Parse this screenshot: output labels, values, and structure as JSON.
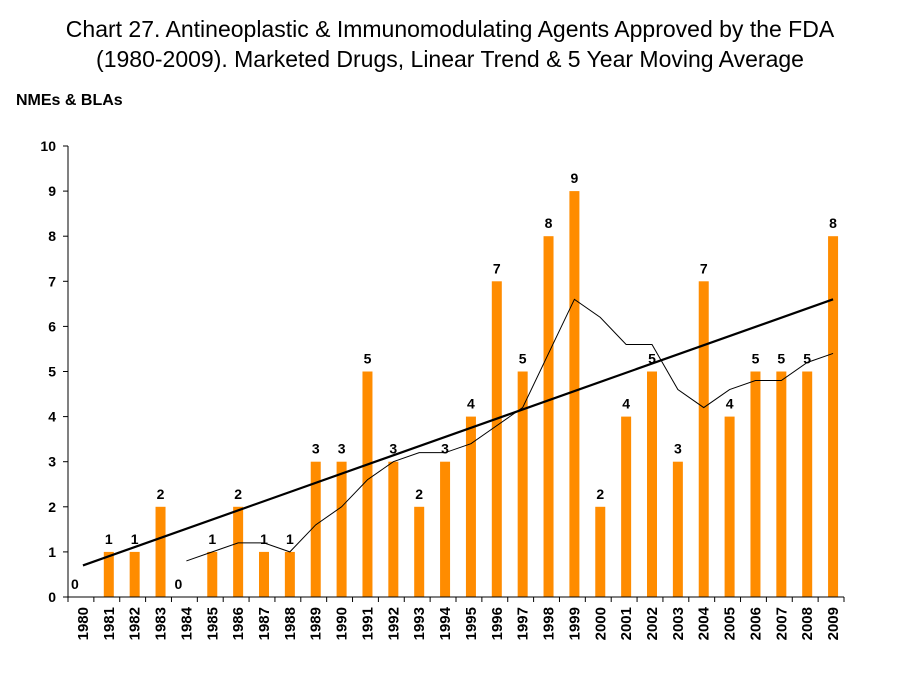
{
  "chart_data": {
    "type": "bar",
    "title_line1": "Chart 27. Antineoplastic & Immunomodulating Agents Approved by the FDA",
    "title_line2": "(1980-2009). Marketed Drugs, Linear Trend & 5 Year Moving Average",
    "xlabel": "",
    "ylabel": "NMEs & BLAs",
    "ylim": [
      0,
      10
    ],
    "yticks": [
      0,
      1,
      2,
      3,
      4,
      5,
      6,
      7,
      8,
      9,
      10
    ],
    "grid": false,
    "bar_color": "#FF8C00",
    "line_color": "#000000",
    "categories": [
      "1980",
      "1981",
      "1982",
      "1983",
      "1984",
      "1985",
      "1986",
      "1987",
      "1988",
      "1989",
      "1990",
      "1991",
      "1992",
      "1993",
      "1994",
      "1995",
      "1996",
      "1997",
      "1998",
      "1999",
      "2000",
      "2001",
      "2002",
      "2003",
      "2004",
      "2005",
      "2006",
      "2007",
      "2008",
      "2009"
    ],
    "series": [
      {
        "name": "Marketed Drugs",
        "type": "bar",
        "values": [
          0,
          1,
          1,
          2,
          0,
          1,
          2,
          1,
          1,
          3,
          3,
          5,
          3,
          2,
          3,
          4,
          7,
          5,
          8,
          9,
          2,
          4,
          5,
          3,
          7,
          4,
          5,
          5,
          5,
          8
        ]
      },
      {
        "name": "Linear Trend",
        "type": "line",
        "start": {
          "x": "1980",
          "y": 0.7
        },
        "end": {
          "x": "2009",
          "y": 6.6
        }
      },
      {
        "name": "5 Year Moving Average",
        "type": "line",
        "values": [
          null,
          null,
          null,
          null,
          0.8,
          1.0,
          1.2,
          1.2,
          1.0,
          1.6,
          2.0,
          2.6,
          3.0,
          3.2,
          3.2,
          3.4,
          3.8,
          4.2,
          5.4,
          6.6,
          6.2,
          5.6,
          5.6,
          4.6,
          4.2,
          4.6,
          4.8,
          4.8,
          5.2,
          5.4
        ]
      }
    ]
  }
}
